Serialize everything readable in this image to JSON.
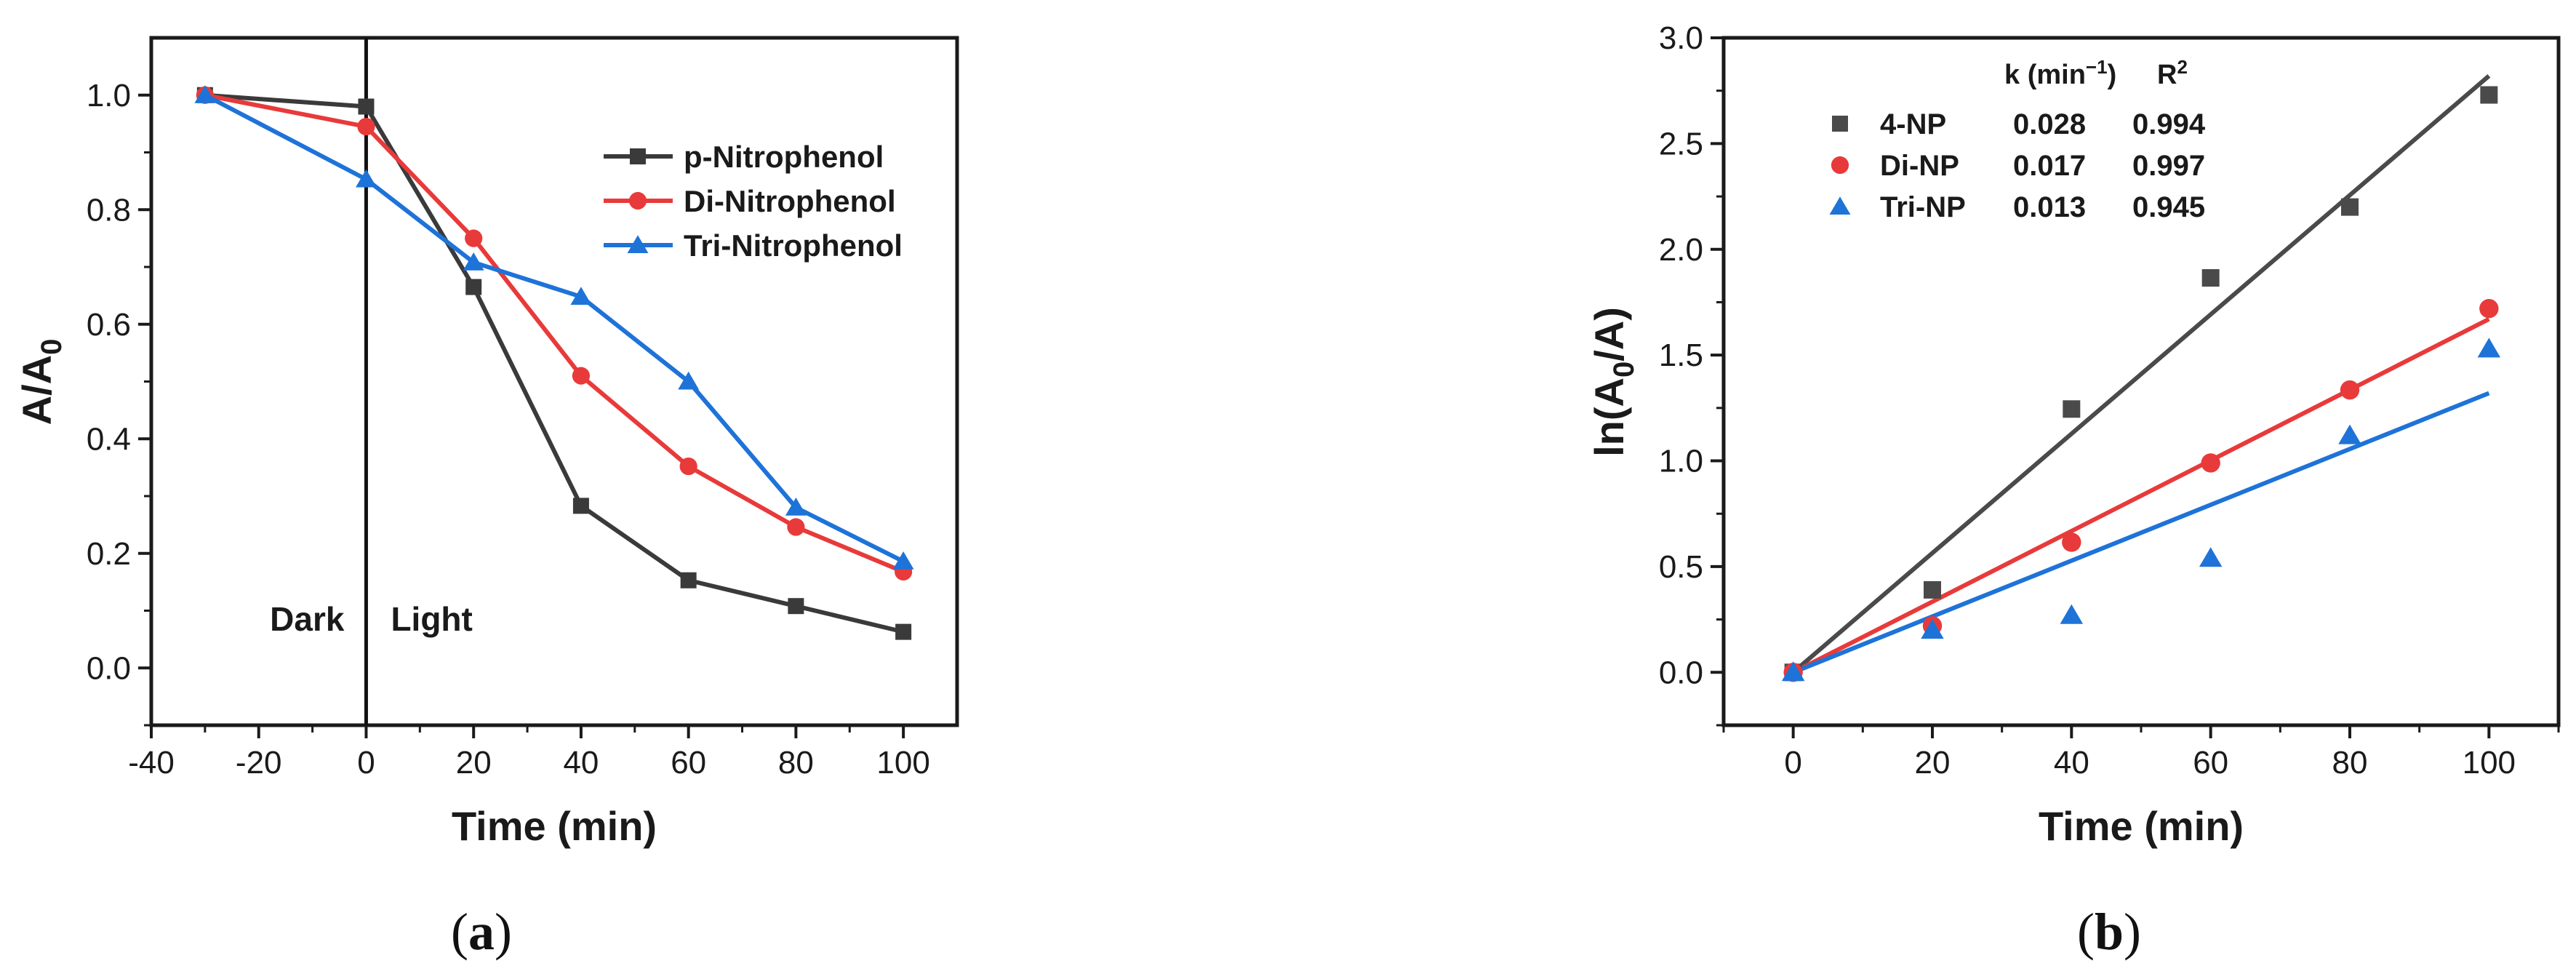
{
  "chart_data": [
    {
      "type": "line",
      "panel_label": "(a)",
      "xlabel": "Time (min)",
      "ylabel": "A/A0",
      "xlim": [
        -40,
        110
      ],
      "ylim": [
        -0.1,
        1.1
      ],
      "xticks": [
        "-40",
        "-20",
        "0",
        "20",
        "40",
        "60",
        "80",
        "100"
      ],
      "yticks": [
        "0.0",
        "0.2",
        "0.4",
        "0.6",
        "0.8",
        "1.0"
      ],
      "legend_position": "upper-right",
      "grid": false,
      "annotations": [
        {
          "text": "Dark"
        },
        {
          "text": "Light"
        }
      ],
      "divider_x": 0,
      "series": [
        {
          "name": "p-Nitrophenol",
          "color": "#3a3a3a",
          "marker": "square",
          "x": [
            -30,
            0,
            20,
            40,
            60,
            80,
            100
          ],
          "y": [
            1.0,
            0.98,
            0.665,
            0.283,
            0.153,
            0.108,
            0.063
          ]
        },
        {
          "name": "Di-Nitrophenol",
          "color": "#e83a3a",
          "marker": "circle",
          "x": [
            -30,
            0,
            20,
            40,
            60,
            80,
            100
          ],
          "y": [
            1.0,
            0.945,
            0.75,
            0.51,
            0.352,
            0.246,
            0.168
          ]
        },
        {
          "name": "Tri-Nitrophenol",
          "color": "#1e73d8",
          "marker": "triangle",
          "x": [
            -30,
            0,
            20,
            40,
            60,
            80,
            100
          ],
          "y": [
            1.0,
            0.853,
            0.708,
            0.648,
            0.5,
            0.28,
            0.186
          ]
        }
      ]
    },
    {
      "type": "scatter",
      "panel_label": "(b)",
      "xlabel": "Time (min)",
      "ylabel": "ln(A0/A)",
      "xlim": [
        -10,
        110
      ],
      "ylim": [
        -0.25,
        3.0
      ],
      "xticks": [
        "0",
        "20",
        "40",
        "60",
        "80",
        "100"
      ],
      "yticks": [
        "0.0",
        "0.5",
        "1.0",
        "1.5",
        "2.0",
        "2.5",
        "3.0"
      ],
      "legend_position": "upper-left",
      "grid": false,
      "table_headers": {
        "k": "k (min",
        "k_sup": "−1",
        "k_close": ")",
        "r2": "R",
        "r2_sup": "2"
      },
      "series": [
        {
          "name": "4-NP",
          "k": "0.028",
          "r2": "0.994",
          "color": "#4a4a4a",
          "marker": "square",
          "x": [
            0,
            20,
            40,
            60,
            80,
            100
          ],
          "y": [
            0.0,
            0.39,
            1.245,
            1.865,
            2.2,
            2.73
          ],
          "fit": [
            [
              0,
              0.0
            ],
            [
              100,
              2.82
            ]
          ]
        },
        {
          "name": "Di-NP",
          "k": "0.017",
          "r2": "0.997",
          "color": "#e83a3a",
          "marker": "circle",
          "x": [
            0,
            20,
            40,
            60,
            80,
            100
          ],
          "y": [
            0.0,
            0.22,
            0.615,
            0.99,
            1.335,
            1.72
          ],
          "fit": [
            [
              0,
              0.0
            ],
            [
              100,
              1.67
            ]
          ]
        },
        {
          "name": "Tri-NP",
          "k": "0.013",
          "r2": "0.945",
          "color": "#1e73d8",
          "marker": "triangle",
          "x": [
            0,
            20,
            40,
            60,
            80,
            100
          ],
          "y": [
            0.0,
            0.2,
            0.27,
            0.54,
            1.12,
            1.53
          ],
          "fit": [
            [
              0,
              0.0
            ],
            [
              100,
              1.32
            ]
          ]
        }
      ]
    }
  ]
}
